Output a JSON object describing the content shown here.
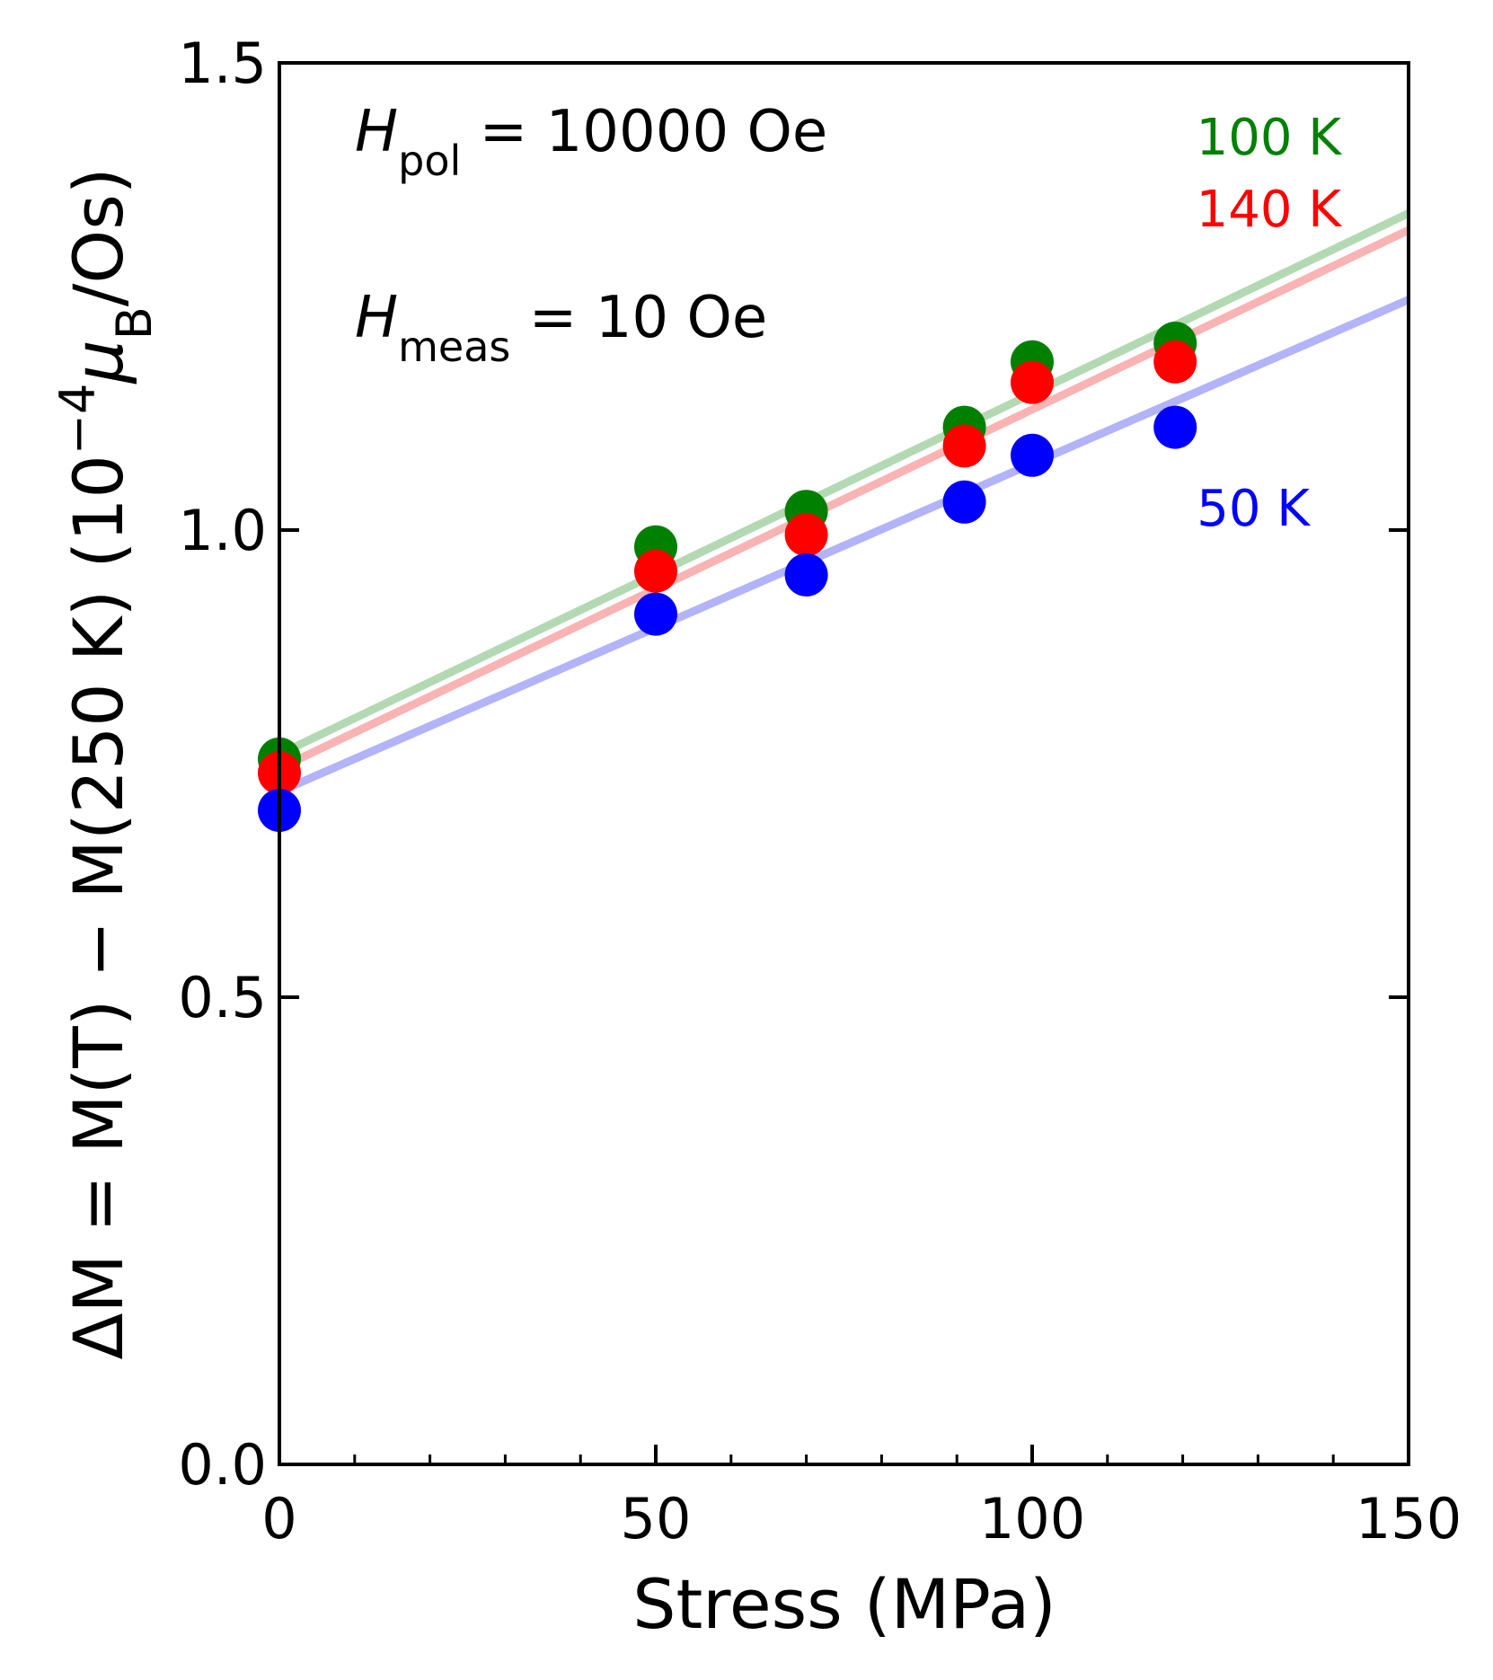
{
  "chart_data": {
    "type": "scatter",
    "xlabel": "Stress (MPa)",
    "ylabel": {
      "prefix": "ΔM = M(T) − M(250 K) (10",
      "exponent": "−4",
      "mu": "μ",
      "mu_sub": "B",
      "suffix": "/Os)"
    },
    "xlim": [
      0,
      150
    ],
    "ylim": [
      0,
      1.5
    ],
    "x_ticks": [
      0,
      50,
      100,
      150
    ],
    "x_tick_labels": [
      "0",
      "50",
      "100",
      "150"
    ],
    "y_ticks": [
      0.0,
      0.5,
      1.0,
      1.5
    ],
    "y_tick_labels": [
      "0.0",
      "0.5",
      "1.0",
      "1.5"
    ],
    "x_minor_step": 10,
    "grid": false,
    "annotations": [
      {
        "main": "H",
        "sub": "pol",
        "rest": " = 10000 Oe"
      },
      {
        "main": "H",
        "sub": "meas",
        "rest": " = 10 Oe"
      }
    ],
    "series": [
      {
        "name": "100 K",
        "color": "#008000",
        "fit_color": "#b3d9b3",
        "x": [
          0,
          50,
          70,
          91,
          100,
          119
        ],
        "y": [
          0.755,
          0.982,
          1.02,
          1.11,
          1.18,
          1.2
        ],
        "fit": {
          "intercept": 0.76,
          "slope": 0.00386
        }
      },
      {
        "name": "140 K",
        "color": "#ff0000",
        "fit_color": "#f9b3b3",
        "x": [
          0,
          50,
          70,
          91,
          100,
          119
        ],
        "y": [
          0.74,
          0.956,
          0.995,
          1.09,
          1.158,
          1.18
        ],
        "fit": {
          "intercept": 0.745,
          "slope": 0.00384
        }
      },
      {
        "name": "50 K",
        "color": "#0000ff",
        "fit_color": "#b3b3f9",
        "x": [
          0,
          50,
          70,
          91,
          100,
          119
        ],
        "y": [
          0.7,
          0.91,
          0.952,
          1.03,
          1.08,
          1.11
        ],
        "fit": {
          "intercept": 0.72,
          "slope": 0.00351
        }
      }
    ]
  }
}
